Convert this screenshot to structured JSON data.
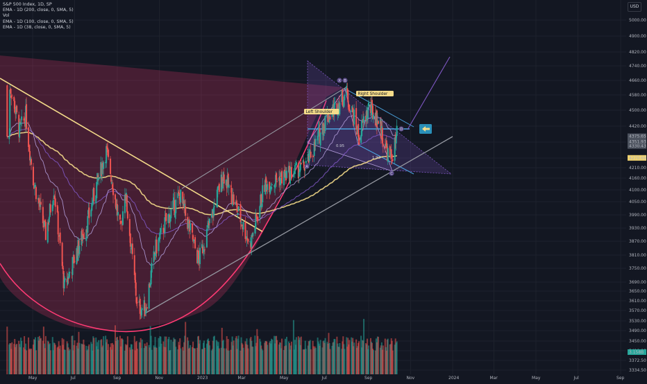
{
  "header": {
    "title": "S&P 500 Index, 1D, SP",
    "indicators": [
      "EMA - 1D (200, close, 0, SMA, 5)",
      "Vol",
      "EMA - 1D (100, close, 0, SMA, 5)",
      "EMA - 1D (38, close, 0, SMA, 5)"
    ],
    "currency": "USD"
  },
  "annotations": {
    "left_shoulder": "Left Shoulder",
    "right_shoulder": "Right Shoulder",
    "point_a": "A",
    "point_b": "B",
    "point_c": "C",
    "point_d": "D",
    "point_x": "X",
    "ratio_1": "0.95",
    "ratio_2": "1.93"
  },
  "price_tags": [
    {
      "label": "4375.65",
      "price": 4375.65,
      "color": "#4c525e"
    },
    {
      "label": "4330.43",
      "price": 4330.43,
      "color": "#4c525e"
    },
    {
      "label": "4351.93",
      "price": 4351.93,
      "color": "#4c525e"
    },
    {
      "label": "4270.69",
      "price": 4270.69,
      "color": "#f0d26e"
    }
  ],
  "volume_tag": {
    "label": "3.158B",
    "color": "#ffffff"
  },
  "colors": {
    "bull": "#26a69a",
    "bear": "#ef5350",
    "ema200": "#f5dc8a",
    "ema100": "#7e57c2",
    "ema38": "#b39ddb",
    "arc": "#ff3b74",
    "grid": "#1e222d",
    "channel": "#9598a1",
    "pattern_fill": "#7e57c2",
    "arrow_box": "#2a8fb8"
  },
  "chart_data": {
    "type": "candlestick",
    "symbol": "S&P 500 Index, 1D, SP",
    "y_axis": {
      "ticks": [
        5000,
        4900,
        4820,
        4740,
        4660,
        4580,
        4500,
        4420,
        4350,
        4270,
        4210,
        4160,
        4100,
        4050,
        3990,
        3930,
        3870,
        3810,
        3750,
        3690,
        3650,
        3610,
        3570,
        3530,
        3490,
        3450,
        3410,
        3372.5,
        3334.5
      ],
      "tick_labels": [
        "5000.00",
        "4900.00",
        "4820.00",
        "4740.00",
        "4660.00",
        "4580.00",
        "4500.00",
        "4420.00",
        "4350.00",
        "4270.00",
        "4210.00",
        "4160.00",
        "4100.00",
        "4050.00",
        "3990.00",
        "3930.00",
        "3870.00",
        "3810.00",
        "3750.00",
        "3690.00",
        "3650.00",
        "3610.00",
        "3570.00",
        "3530.00",
        "3490.00",
        "3450.00",
        "3410.00",
        "3372.50",
        "3334.50"
      ],
      "scale": "log"
    },
    "x_axis": {
      "tick_labels": [
        "May",
        "Jul",
        "Sep",
        "Nov",
        "2023",
        "Mar",
        "May",
        "Jul",
        "Sep",
        "Nov",
        "2024",
        "Mar",
        "May",
        "Jul",
        "Sep"
      ]
    },
    "series": [
      {
        "name": "S&P 500",
        "kind": "price",
        "points": [
          [
            "2022-03-29",
            4631
          ],
          [
            "2022-04-12",
            4397
          ],
          [
            "2022-04-21",
            4475
          ],
          [
            "2022-05-02",
            4155
          ],
          [
            "2022-05-20",
            3901
          ],
          [
            "2022-06-01",
            4110
          ],
          [
            "2022-06-16",
            3667
          ],
          [
            "2022-07-05",
            3831
          ],
          [
            "2022-07-20",
            3960
          ],
          [
            "2022-08-16",
            4305
          ],
          [
            "2022-09-06",
            3908
          ],
          [
            "2022-09-12",
            4110
          ],
          [
            "2022-09-30",
            3585
          ],
          [
            "2022-10-12",
            3577
          ],
          [
            "2022-10-26",
            3830
          ],
          [
            "2022-11-10",
            3956
          ],
          [
            "2022-12-01",
            4076
          ],
          [
            "2022-12-28",
            3783
          ],
          [
            "2023-01-17",
            3990
          ],
          [
            "2023-02-02",
            4179
          ],
          [
            "2023-03-13",
            3855
          ],
          [
            "2023-04-03",
            4124
          ],
          [
            "2023-05-01",
            4167
          ],
          [
            "2023-06-01",
            4221
          ],
          [
            "2023-06-30",
            4450
          ],
          [
            "2023-07-31",
            4589
          ],
          [
            "2023-08-18",
            4370
          ],
          [
            "2023-09-01",
            4515
          ],
          [
            "2023-09-15",
            4450
          ],
          [
            "2023-09-29",
            4288
          ],
          [
            "2023-10-04",
            4263
          ],
          [
            "2023-10-12",
            4375
          ]
        ]
      },
      {
        "name": "EMA 200",
        "kind": "line"
      },
      {
        "name": "EMA 100",
        "kind": "line"
      },
      {
        "name": "EMA 38",
        "kind": "line"
      },
      {
        "name": "Vol",
        "kind": "volume"
      }
    ]
  }
}
